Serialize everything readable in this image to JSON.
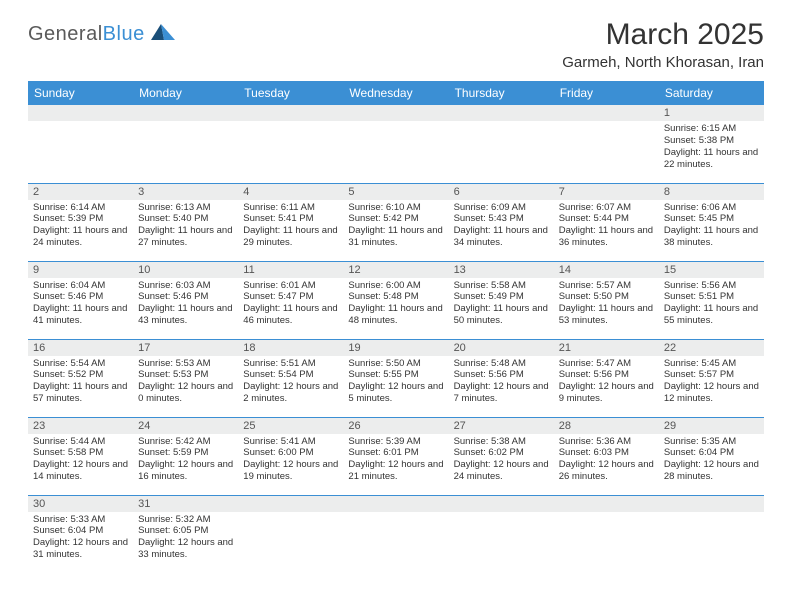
{
  "logo": {
    "part1": "General",
    "part2": "Blue"
  },
  "title": "March 2025",
  "location": "Garmeh, North Khorasan, Iran",
  "weekdays": [
    "Sunday",
    "Monday",
    "Tuesday",
    "Wednesday",
    "Thursday",
    "Friday",
    "Saturday"
  ],
  "header_bg": "#3b8fd4",
  "daynum_bg": "#eceded",
  "border_color": "#3b8fd4",
  "weeks": [
    [
      null,
      null,
      null,
      null,
      null,
      null,
      {
        "n": "1",
        "sr": "6:15 AM",
        "ss": "5:38 PM",
        "dl": "11 hours and 22 minutes."
      }
    ],
    [
      {
        "n": "2",
        "sr": "6:14 AM",
        "ss": "5:39 PM",
        "dl": "11 hours and 24 minutes."
      },
      {
        "n": "3",
        "sr": "6:13 AM",
        "ss": "5:40 PM",
        "dl": "11 hours and 27 minutes."
      },
      {
        "n": "4",
        "sr": "6:11 AM",
        "ss": "5:41 PM",
        "dl": "11 hours and 29 minutes."
      },
      {
        "n": "5",
        "sr": "6:10 AM",
        "ss": "5:42 PM",
        "dl": "11 hours and 31 minutes."
      },
      {
        "n": "6",
        "sr": "6:09 AM",
        "ss": "5:43 PM",
        "dl": "11 hours and 34 minutes."
      },
      {
        "n": "7",
        "sr": "6:07 AM",
        "ss": "5:44 PM",
        "dl": "11 hours and 36 minutes."
      },
      {
        "n": "8",
        "sr": "6:06 AM",
        "ss": "5:45 PM",
        "dl": "11 hours and 38 minutes."
      }
    ],
    [
      {
        "n": "9",
        "sr": "6:04 AM",
        "ss": "5:46 PM",
        "dl": "11 hours and 41 minutes."
      },
      {
        "n": "10",
        "sr": "6:03 AM",
        "ss": "5:46 PM",
        "dl": "11 hours and 43 minutes."
      },
      {
        "n": "11",
        "sr": "6:01 AM",
        "ss": "5:47 PM",
        "dl": "11 hours and 46 minutes."
      },
      {
        "n": "12",
        "sr": "6:00 AM",
        "ss": "5:48 PM",
        "dl": "11 hours and 48 minutes."
      },
      {
        "n": "13",
        "sr": "5:58 AM",
        "ss": "5:49 PM",
        "dl": "11 hours and 50 minutes."
      },
      {
        "n": "14",
        "sr": "5:57 AM",
        "ss": "5:50 PM",
        "dl": "11 hours and 53 minutes."
      },
      {
        "n": "15",
        "sr": "5:56 AM",
        "ss": "5:51 PM",
        "dl": "11 hours and 55 minutes."
      }
    ],
    [
      {
        "n": "16",
        "sr": "5:54 AM",
        "ss": "5:52 PM",
        "dl": "11 hours and 57 minutes."
      },
      {
        "n": "17",
        "sr": "5:53 AM",
        "ss": "5:53 PM",
        "dl": "12 hours and 0 minutes."
      },
      {
        "n": "18",
        "sr": "5:51 AM",
        "ss": "5:54 PM",
        "dl": "12 hours and 2 minutes."
      },
      {
        "n": "19",
        "sr": "5:50 AM",
        "ss": "5:55 PM",
        "dl": "12 hours and 5 minutes."
      },
      {
        "n": "20",
        "sr": "5:48 AM",
        "ss": "5:56 PM",
        "dl": "12 hours and 7 minutes."
      },
      {
        "n": "21",
        "sr": "5:47 AM",
        "ss": "5:56 PM",
        "dl": "12 hours and 9 minutes."
      },
      {
        "n": "22",
        "sr": "5:45 AM",
        "ss": "5:57 PM",
        "dl": "12 hours and 12 minutes."
      }
    ],
    [
      {
        "n": "23",
        "sr": "5:44 AM",
        "ss": "5:58 PM",
        "dl": "12 hours and 14 minutes."
      },
      {
        "n": "24",
        "sr": "5:42 AM",
        "ss": "5:59 PM",
        "dl": "12 hours and 16 minutes."
      },
      {
        "n": "25",
        "sr": "5:41 AM",
        "ss": "6:00 PM",
        "dl": "12 hours and 19 minutes."
      },
      {
        "n": "26",
        "sr": "5:39 AM",
        "ss": "6:01 PM",
        "dl": "12 hours and 21 minutes."
      },
      {
        "n": "27",
        "sr": "5:38 AM",
        "ss": "6:02 PM",
        "dl": "12 hours and 24 minutes."
      },
      {
        "n": "28",
        "sr": "5:36 AM",
        "ss": "6:03 PM",
        "dl": "12 hours and 26 minutes."
      },
      {
        "n": "29",
        "sr": "5:35 AM",
        "ss": "6:04 PM",
        "dl": "12 hours and 28 minutes."
      }
    ],
    [
      {
        "n": "30",
        "sr": "5:33 AM",
        "ss": "6:04 PM",
        "dl": "12 hours and 31 minutes."
      },
      {
        "n": "31",
        "sr": "5:32 AM",
        "ss": "6:05 PM",
        "dl": "12 hours and 33 minutes."
      },
      null,
      null,
      null,
      null,
      null
    ]
  ],
  "labels": {
    "sunrise": "Sunrise:",
    "sunset": "Sunset:",
    "daylight": "Daylight:"
  }
}
